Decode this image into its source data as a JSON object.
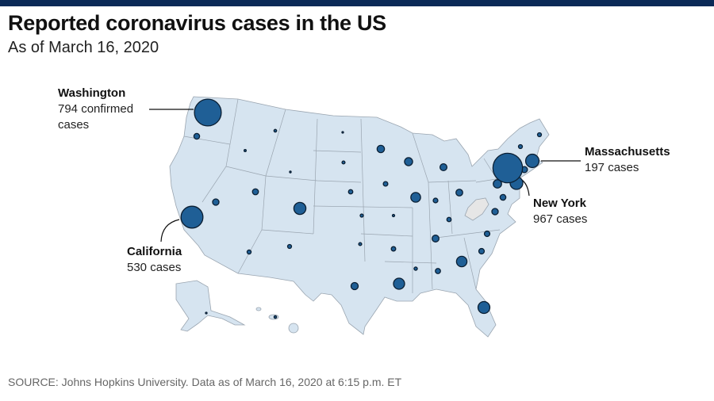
{
  "header": {
    "title": "Reported coronavirus cases in the US",
    "subtitle": "As of March 16, 2020"
  },
  "chart_data": {
    "type": "bubble-map",
    "color": "#1f5f96",
    "callouts": [
      {
        "name": "Washington",
        "value": 794,
        "value_label": "794 confirmed cases"
      },
      {
        "name": "California",
        "value": 530,
        "value_label": "530 cases"
      },
      {
        "name": "New York",
        "value": 967,
        "value_label": "967 cases"
      },
      {
        "name": "Massachusetts",
        "value": 197,
        "value_label": "197 cases"
      }
    ],
    "other_values": [
      36,
      8,
      5,
      1,
      3,
      10,
      60,
      72,
      53,
      45,
      39,
      160,
      21,
      23,
      105,
      24,
      50,
      11,
      6,
      21,
      45,
      37,
      178,
      76,
      41,
      17,
      17,
      18,
      17,
      10,
      22,
      52,
      33,
      33,
      121,
      29,
      12,
      136,
      57,
      155,
      1,
      7
    ]
  },
  "footer": {
    "source": "SOURCE: Johns Hopkins University. Data as of March 16, 2020 at 6:15 p.m. ET"
  }
}
